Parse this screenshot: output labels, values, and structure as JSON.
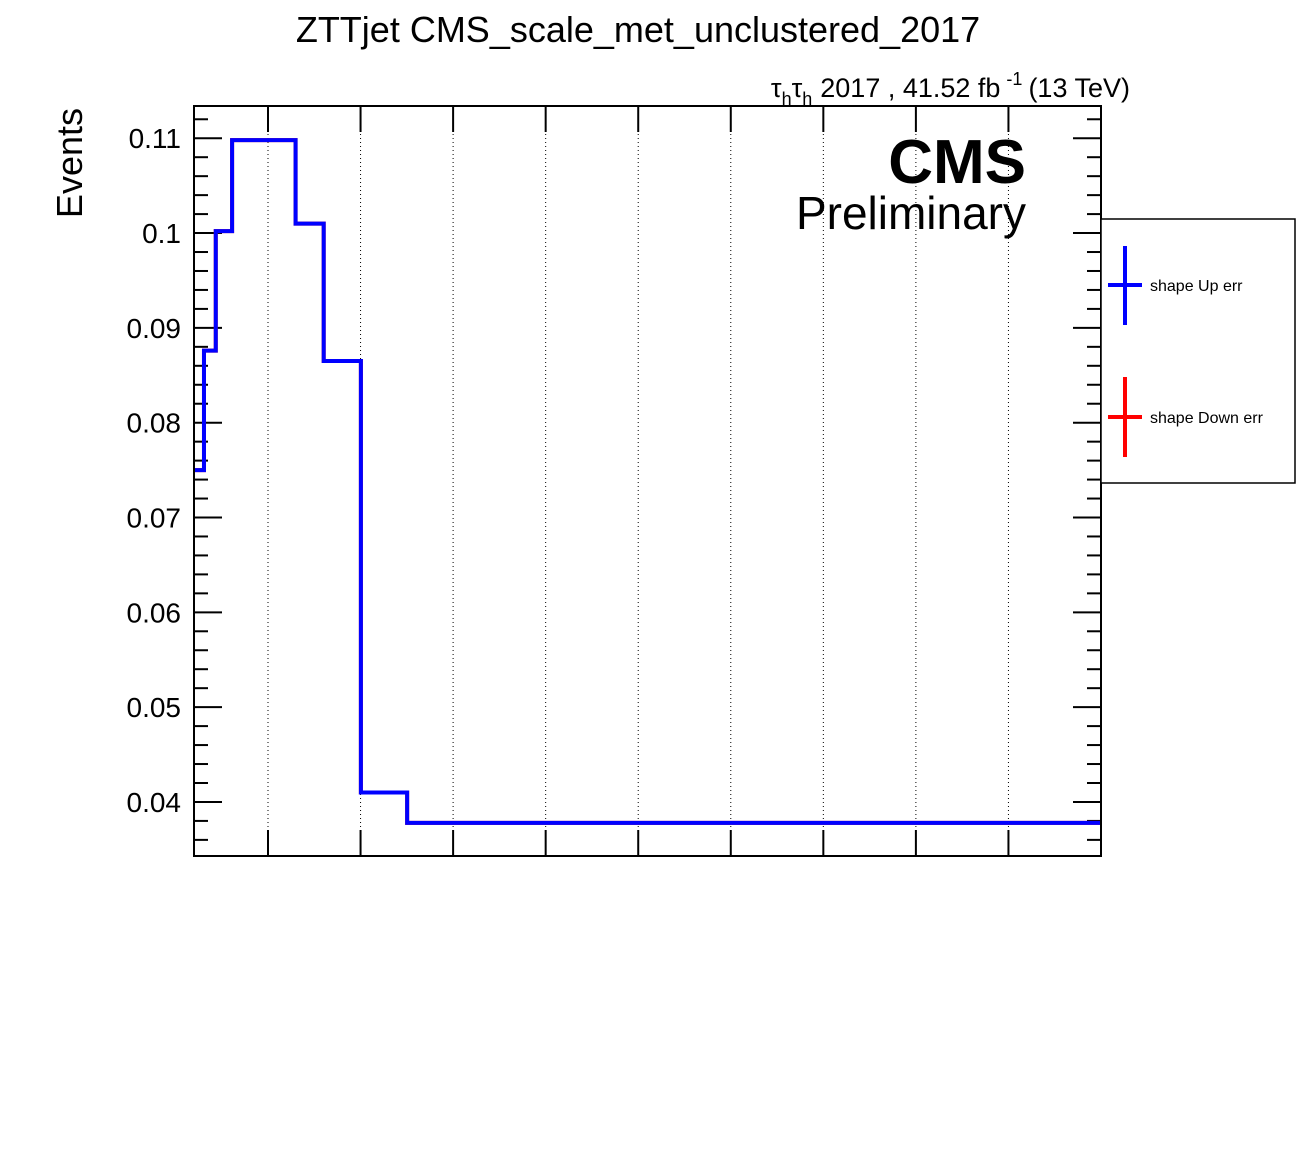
{
  "chart_data": {
    "type": "step",
    "title": "ZTTjet CMS_scale_met_unclustered_2017",
    "ylabel": "Events",
    "xlabel": "",
    "ylim": [
      0.0343,
      0.1134
    ],
    "yticks": [
      0.04,
      0.05,
      0.06,
      0.07,
      0.08,
      0.09,
      0.1,
      0.11
    ],
    "ytick_labels": [
      "0.04",
      "0.05",
      "0.06",
      "0.07",
      "0.08",
      "0.09",
      "0.1",
      "0.11"
    ],
    "xlim": [
      0,
      1
    ],
    "grid": "vertical dotted",
    "lumi": {
      "channel_tau": "τ",
      "channel_sub": "h",
      "text": "2017 , 41.52 fb",
      "superscript": "-1",
      "energy": "(13 TeV)"
    },
    "cms_label": "CMS",
    "cms_sublabel": "Preliminary",
    "legend": {
      "placement": "right outside",
      "entries": [
        {
          "label": "shape Up err",
          "color": "#0000ff"
        },
        {
          "label": "shape Down err",
          "color": "#ff0000"
        }
      ]
    },
    "series": [
      {
        "name": "shape Up err",
        "color": "#0000ff",
        "edges": [
          0,
          0.011,
          0.024,
          0.042,
          0.112,
          0.143,
          0.184,
          0.235,
          1.0
        ],
        "values": [
          0.075,
          0.0876,
          0.1002,
          0.1098,
          0.101,
          0.0865,
          0.041,
          0.0378
        ]
      },
      {
        "name": "shape Down err",
        "color": "#ff0000",
        "edges": [
          0,
          0.011,
          0.024,
          0.042,
          0.112,
          0.143,
          0.184,
          0.235,
          1.0
        ],
        "values": [
          0.075,
          0.0876,
          0.1002,
          0.1098,
          0.101,
          0.0865,
          0.041,
          0.0378
        ]
      }
    ]
  }
}
